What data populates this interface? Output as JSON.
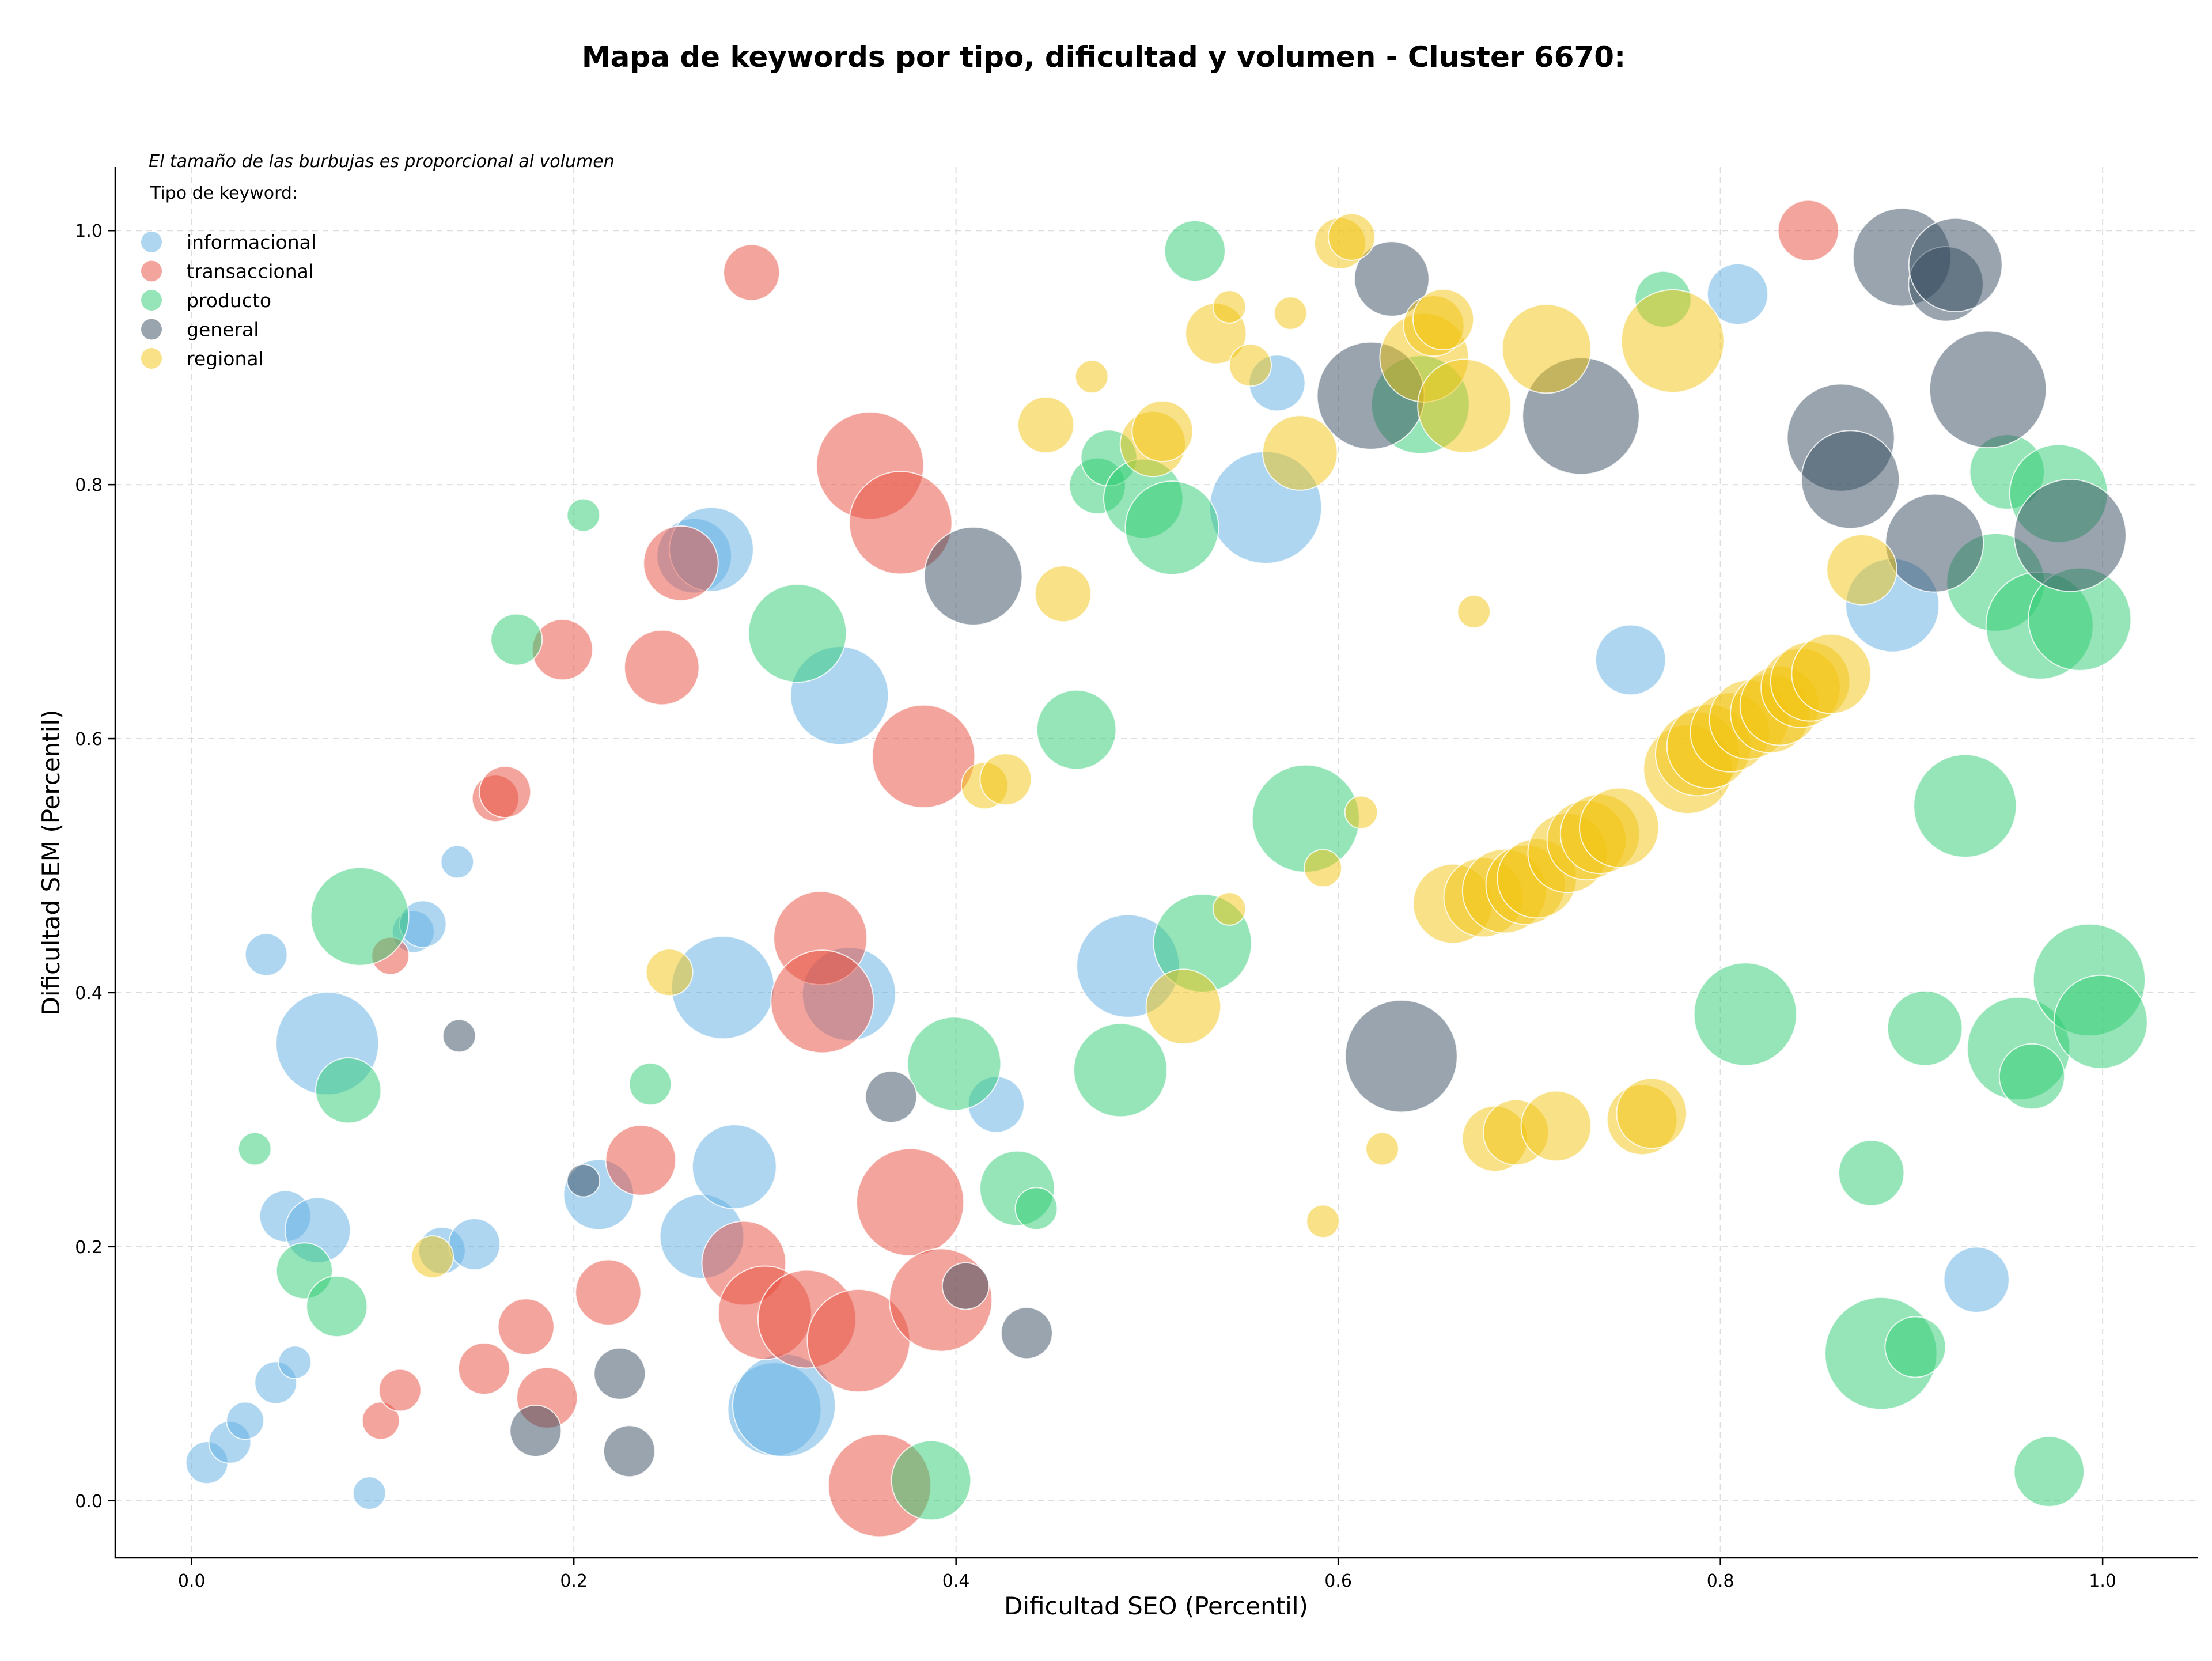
{
  "chart_data": {
    "type": "scatter",
    "title": "Mapa de keywords por tipo, dificultad y volumen - Cluster 6670:",
    "xlabel": "Dificultad SEO (Percentil)",
    "ylabel": "Dificultad SEM (Percentil)",
    "xlim": [
      -0.04,
      1.05
    ],
    "ylim": [
      -0.045,
      1.05
    ],
    "xticks": [
      "0.0",
      "0.2",
      "0.4",
      "0.6",
      "0.8",
      "1.0"
    ],
    "yticks": [
      "0.0",
      "0.2",
      "0.4",
      "0.6",
      "0.8",
      "1.0"
    ],
    "grid": true,
    "note": "El tamaño de las burbujas es proporcional al volumen",
    "legend": {
      "title": "Tipo de keyword:",
      "placement": "top-left"
    },
    "series": [
      {
        "name": "informacional",
        "color": "#5DADE2",
        "points": [
          [
            0.008,
            0.03,
            9
          ],
          [
            0.02,
            0.046,
            9
          ],
          [
            0.028,
            0.063,
            8
          ],
          [
            0.044,
            0.093,
            9
          ],
          [
            0.054,
            0.109,
            7
          ],
          [
            0.049,
            0.224,
            11
          ],
          [
            0.066,
            0.213,
            14
          ],
          [
            0.071,
            0.36,
            22
          ],
          [
            0.039,
            0.43,
            9
          ],
          [
            0.116,
            0.448,
            9
          ],
          [
            0.121,
            0.454,
            10
          ],
          [
            0.139,
            0.503,
            7
          ],
          [
            0.093,
            0.006,
            7
          ],
          [
            0.131,
            0.197,
            10
          ],
          [
            0.148,
            0.202,
            11
          ],
          [
            0.213,
            0.241,
            15
          ],
          [
            0.267,
            0.208,
            18
          ],
          [
            0.284,
            0.263,
            18
          ],
          [
            0.305,
            0.072,
            20
          ],
          [
            0.31,
            0.075,
            22
          ],
          [
            0.278,
            0.404,
            22
          ],
          [
            0.344,
            0.399,
            20
          ],
          [
            0.339,
            0.634,
            21
          ],
          [
            0.263,
            0.744,
            16
          ],
          [
            0.272,
            0.749,
            18
          ],
          [
            0.421,
            0.312,
            12
          ],
          [
            0.49,
            0.421,
            22
          ],
          [
            0.562,
            0.782,
            24
          ],
          [
            0.568,
            0.88,
            12
          ],
          [
            0.753,
            0.662,
            15
          ],
          [
            0.809,
            0.95,
            13
          ],
          [
            0.89,
            0.705,
            20
          ],
          [
            0.934,
            0.174,
            14
          ]
        ]
      },
      {
        "name": "transaccional",
        "color": "#E74C3C",
        "points": [
          [
            0.099,
            0.063,
            8
          ],
          [
            0.104,
            0.429,
            8
          ],
          [
            0.109,
            0.087,
            9
          ],
          [
            0.153,
            0.104,
            11
          ],
          [
            0.159,
            0.553,
            10
          ],
          [
            0.164,
            0.558,
            11
          ],
          [
            0.175,
            0.137,
            12
          ],
          [
            0.186,
            0.081,
            13
          ],
          [
            0.194,
            0.67,
            13
          ],
          [
            0.218,
            0.164,
            14
          ],
          [
            0.235,
            0.268,
            15
          ],
          [
            0.246,
            0.656,
            16
          ],
          [
            0.256,
            0.738,
            16
          ],
          [
            0.293,
            0.967,
            12
          ],
          [
            0.289,
            0.187,
            18
          ],
          [
            0.3,
            0.148,
            20
          ],
          [
            0.322,
            0.143,
            21
          ],
          [
            0.349,
            0.126,
            22
          ],
          [
            0.329,
            0.443,
            20
          ],
          [
            0.33,
            0.393,
            22
          ],
          [
            0.36,
            0.012,
            22
          ],
          [
            0.355,
            0.815,
            23
          ],
          [
            0.371,
            0.77,
            22
          ],
          [
            0.376,
            0.235,
            23
          ],
          [
            0.383,
            0.586,
            22
          ],
          [
            0.392,
            0.158,
            22
          ],
          [
            0.846,
            1.0,
            13
          ]
        ]
      },
      {
        "name": "producto",
        "color": "#2ECC71",
        "points": [
          [
            0.033,
            0.277,
            7
          ],
          [
            0.059,
            0.181,
            12
          ],
          [
            0.076,
            0.153,
            13
          ],
          [
            0.082,
            0.323,
            14
          ],
          [
            0.088,
            0.46,
            21
          ],
          [
            0.17,
            0.678,
            11
          ],
          [
            0.205,
            0.776,
            7
          ],
          [
            0.24,
            0.328,
            9
          ],
          [
            0.317,
            0.683,
            21
          ],
          [
            0.387,
            0.016,
            17
          ],
          [
            0.399,
            0.344,
            20
          ],
          [
            0.432,
            0.246,
            16
          ],
          [
            0.442,
            0.23,
            9
          ],
          [
            0.463,
            0.607,
            17
          ],
          [
            0.474,
            0.799,
            12
          ],
          [
            0.48,
            0.821,
            12
          ],
          [
            0.486,
            0.339,
            20
          ],
          [
            0.498,
            0.789,
            17
          ],
          [
            0.513,
            0.766,
            20
          ],
          [
            0.525,
            0.984,
            13
          ],
          [
            0.583,
            0.537,
            23
          ],
          [
            0.529,
            0.439,
            21
          ],
          [
            0.643,
            0.863,
            21
          ],
          [
            0.77,
            0.946,
            12
          ],
          [
            0.813,
            0.383,
            22
          ],
          [
            0.879,
            0.258,
            14
          ],
          [
            0.884,
            0.116,
            24
          ],
          [
            0.902,
            0.121,
            13
          ],
          [
            0.907,
            0.372,
            16
          ],
          [
            0.928,
            0.547,
            22
          ],
          [
            0.95,
            0.81,
            16
          ],
          [
            0.944,
            0.723,
            21
          ],
          [
            0.956,
            0.356,
            22
          ],
          [
            0.963,
            0.334,
            14
          ],
          [
            0.967,
            0.689,
            23
          ],
          [
            0.972,
            0.023,
            15
          ],
          [
            0.977,
            0.793,
            21
          ],
          [
            0.988,
            0.694,
            22
          ],
          [
            0.993,
            0.41,
            24
          ],
          [
            0.999,
            0.377,
            20
          ]
        ]
      },
      {
        "name": "general",
        "color": "#34495E",
        "points": [
          [
            0.14,
            0.366,
            7
          ],
          [
            0.18,
            0.055,
            11
          ],
          [
            0.205,
            0.252,
            7
          ],
          [
            0.224,
            0.1,
            11
          ],
          [
            0.229,
            0.039,
            11
          ],
          [
            0.366,
            0.318,
            11
          ],
          [
            0.405,
            0.169,
            10
          ],
          [
            0.409,
            0.728,
            21
          ],
          [
            0.437,
            0.132,
            11
          ],
          [
            0.617,
            0.87,
            23
          ],
          [
            0.628,
            0.962,
            16
          ],
          [
            0.633,
            0.35,
            24
          ],
          [
            0.727,
            0.854,
            25
          ],
          [
            0.863,
            0.837,
            23
          ],
          [
            0.868,
            0.804,
            21
          ],
          [
            0.895,
            0.979,
            21
          ],
          [
            0.912,
            0.754,
            21
          ],
          [
            0.918,
            0.958,
            16
          ],
          [
            0.923,
            0.973,
            20
          ],
          [
            0.94,
            0.875,
            25
          ],
          [
            0.983,
            0.76,
            24
          ]
        ]
      },
      {
        "name": "regional",
        "color": "#F1C40F",
        "points": [
          [
            0.126,
            0.192,
            9
          ],
          [
            0.25,
            0.416,
            10
          ],
          [
            0.415,
            0.563,
            10
          ],
          [
            0.426,
            0.568,
            11
          ],
          [
            0.447,
            0.847,
            12
          ],
          [
            0.456,
            0.714,
            12
          ],
          [
            0.471,
            0.885,
            7
          ],
          [
            0.503,
            0.832,
            14
          ],
          [
            0.508,
            0.842,
            13
          ],
          [
            0.519,
            0.389,
            16
          ],
          [
            0.536,
            0.919,
            13
          ],
          [
            0.543,
            0.94,
            7
          ],
          [
            0.543,
            0.466,
            7
          ],
          [
            0.554,
            0.894,
            9
          ],
          [
            0.575,
            0.935,
            7
          ],
          [
            0.58,
            0.825,
            16
          ],
          [
            0.592,
            0.22,
            7
          ],
          [
            0.592,
            0.498,
            8
          ],
          [
            0.601,
            0.99,
            11
          ],
          [
            0.607,
            0.995,
            10
          ],
          [
            0.612,
            0.542,
            7
          ],
          [
            0.623,
            0.277,
            7
          ],
          [
            0.645,
            0.9,
            19
          ],
          [
            0.65,
            0.925,
            13
          ],
          [
            0.655,
            0.93,
            13
          ],
          [
            0.666,
            0.862,
            20
          ],
          [
            0.671,
            0.7,
            7
          ],
          [
            0.66,
            0.47,
            17
          ],
          [
            0.676,
            0.475,
            17
          ],
          [
            0.682,
            0.285,
            14
          ],
          [
            0.687,
            0.48,
            18
          ],
          [
            0.693,
            0.29,
            14
          ],
          [
            0.698,
            0.485,
            17
          ],
          [
            0.704,
            0.49,
            17
          ],
          [
            0.709,
            0.907,
            19
          ],
          [
            0.714,
            0.295,
            15
          ],
          [
            0.72,
            0.51,
            17
          ],
          [
            0.73,
            0.52,
            17
          ],
          [
            0.737,
            0.525,
            17
          ],
          [
            0.747,
            0.53,
            17
          ],
          [
            0.759,
            0.3,
            15
          ],
          [
            0.764,
            0.305,
            15
          ],
          [
            0.775,
            0.913,
            22
          ],
          [
            0.783,
            0.576,
            19
          ],
          [
            0.788,
            0.588,
            18
          ],
          [
            0.794,
            0.594,
            18
          ],
          [
            0.805,
            0.605,
            17
          ],
          [
            0.815,
            0.615,
            17
          ],
          [
            0.826,
            0.62,
            17
          ],
          [
            0.831,
            0.626,
            17
          ],
          [
            0.842,
            0.64,
            17
          ],
          [
            0.847,
            0.645,
            17
          ],
          [
            0.858,
            0.651,
            17
          ],
          [
            0.874,
            0.733,
            15
          ]
        ]
      }
    ]
  }
}
